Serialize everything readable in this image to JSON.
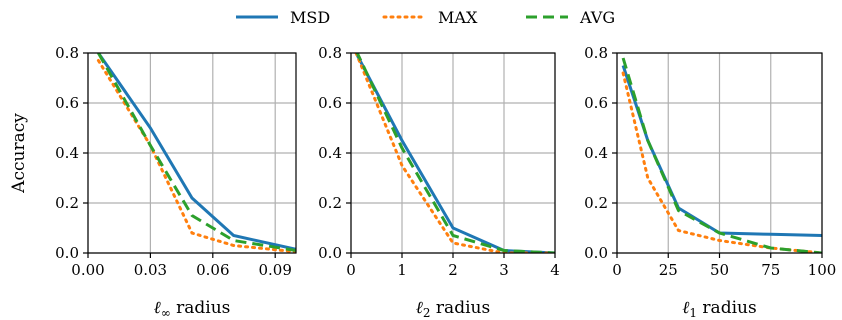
{
  "colors": {
    "MSD": "#1f77b4",
    "MAX": "#ff7f0e",
    "AVG": "#2ca02c",
    "grid": "#b0b0b0"
  },
  "legend": [
    {
      "key": "MSD",
      "label": "MSD",
      "style": "solid"
    },
    {
      "key": "MAX",
      "label": "MAX",
      "style": "dotted"
    },
    {
      "key": "AVG",
      "label": "AVG",
      "style": "dashed"
    }
  ],
  "chart_data": [
    {
      "type": "line",
      "xlabel_sym": "ℓ",
      "xlabel_sub": "∞",
      "xlabel_rest": " radius",
      "ylabel": "Accuracy",
      "xlim": [
        0.0,
        0.1
      ],
      "ylim": [
        0.0,
        0.8
      ],
      "xticks": [
        0.0,
        0.03,
        0.06,
        0.09
      ],
      "xtick_labels": [
        "0.00",
        "0.03",
        "0.06",
        "0.09"
      ],
      "yticks": [
        0.0,
        0.2,
        0.4,
        0.6,
        0.8
      ],
      "ytick_labels": [
        "0.0",
        "0.2",
        "0.4",
        "0.6",
        "0.8"
      ],
      "grid": true,
      "series": [
        {
          "name": "MSD",
          "x": [
            0.005,
            0.03,
            0.05,
            0.07,
            0.1
          ],
          "y": [
            0.8,
            0.5,
            0.22,
            0.07,
            0.015
          ]
        },
        {
          "name": "MAX",
          "x": [
            0.005,
            0.03,
            0.05,
            0.07,
            0.1
          ],
          "y": [
            0.77,
            0.43,
            0.08,
            0.03,
            0.005
          ]
        },
        {
          "name": "AVG",
          "x": [
            0.005,
            0.03,
            0.05,
            0.07,
            0.1
          ],
          "y": [
            0.8,
            0.43,
            0.15,
            0.05,
            0.01
          ]
        }
      ]
    },
    {
      "type": "line",
      "xlabel_sym": "ℓ",
      "xlabel_sub": "2",
      "xlabel_rest": " radius",
      "ylabel": "",
      "xlim": [
        0,
        4
      ],
      "ylim": [
        0.0,
        0.8
      ],
      "xticks": [
        0,
        1,
        2,
        3,
        4
      ],
      "xtick_labels": [
        "0",
        "1",
        "2",
        "3",
        "4"
      ],
      "yticks": [
        0.0,
        0.2,
        0.4,
        0.6,
        0.8
      ],
      "ytick_labels": [
        "0.0",
        "0.2",
        "0.4",
        "0.6",
        "0.8"
      ],
      "grid": true,
      "series": [
        {
          "name": "MSD",
          "x": [
            0.1,
            1,
            2,
            3,
            4
          ],
          "y": [
            0.8,
            0.45,
            0.1,
            0.01,
            0.0
          ]
        },
        {
          "name": "MAX",
          "x": [
            0.1,
            1,
            2,
            3,
            4
          ],
          "y": [
            0.8,
            0.35,
            0.04,
            0.0,
            0.0
          ]
        },
        {
          "name": "AVG",
          "x": [
            0.1,
            1,
            2,
            3,
            4
          ],
          "y": [
            0.81,
            0.42,
            0.07,
            0.01,
            0.0
          ]
        }
      ]
    },
    {
      "type": "line",
      "xlabel_sym": "ℓ",
      "xlabel_sub": "1",
      "xlabel_rest": " radius",
      "ylabel": "",
      "xlim": [
        0,
        100
      ],
      "ylim": [
        0.0,
        0.8
      ],
      "xticks": [
        0,
        25,
        50,
        75,
        100
      ],
      "xtick_labels": [
        "0",
        "25",
        "50",
        "75",
        "100"
      ],
      "yticks": [
        0.0,
        0.2,
        0.4,
        0.6,
        0.8
      ],
      "ytick_labels": [
        "0.0",
        "0.2",
        "0.4",
        "0.6",
        "0.8"
      ],
      "grid": true,
      "series": [
        {
          "name": "MSD",
          "x": [
            3,
            15,
            30,
            50,
            75,
            100
          ],
          "y": [
            0.75,
            0.45,
            0.18,
            0.08,
            0.075,
            0.07
          ]
        },
        {
          "name": "MAX",
          "x": [
            3,
            15,
            30,
            50,
            75,
            100
          ],
          "y": [
            0.72,
            0.3,
            0.09,
            0.05,
            0.02,
            0.0
          ]
        },
        {
          "name": "AVG",
          "x": [
            3,
            15,
            30,
            50,
            75,
            100
          ],
          "y": [
            0.78,
            0.45,
            0.17,
            0.08,
            0.02,
            0.0
          ]
        }
      ]
    }
  ]
}
